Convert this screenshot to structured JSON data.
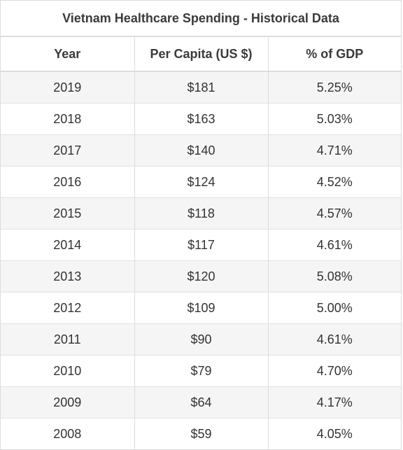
{
  "table": {
    "title": "Vietnam Healthcare Spending - Historical Data",
    "columns": [
      "Year",
      "Per Capita (US $)",
      "% of GDP"
    ],
    "rows": [
      [
        "2019",
        "$181",
        "5.25%"
      ],
      [
        "2018",
        "$163",
        "5.03%"
      ],
      [
        "2017",
        "$140",
        "4.71%"
      ],
      [
        "2016",
        "$124",
        "4.52%"
      ],
      [
        "2015",
        "$118",
        "4.57%"
      ],
      [
        "2014",
        "$117",
        "4.61%"
      ],
      [
        "2013",
        "$120",
        "5.08%"
      ],
      [
        "2012",
        "$109",
        "5.00%"
      ],
      [
        "2011",
        "$90",
        "4.61%"
      ],
      [
        "2010",
        "$79",
        "4.70%"
      ],
      [
        "2009",
        "$64",
        "4.17%"
      ],
      [
        "2008",
        "$59",
        "4.05%"
      ]
    ]
  }
}
